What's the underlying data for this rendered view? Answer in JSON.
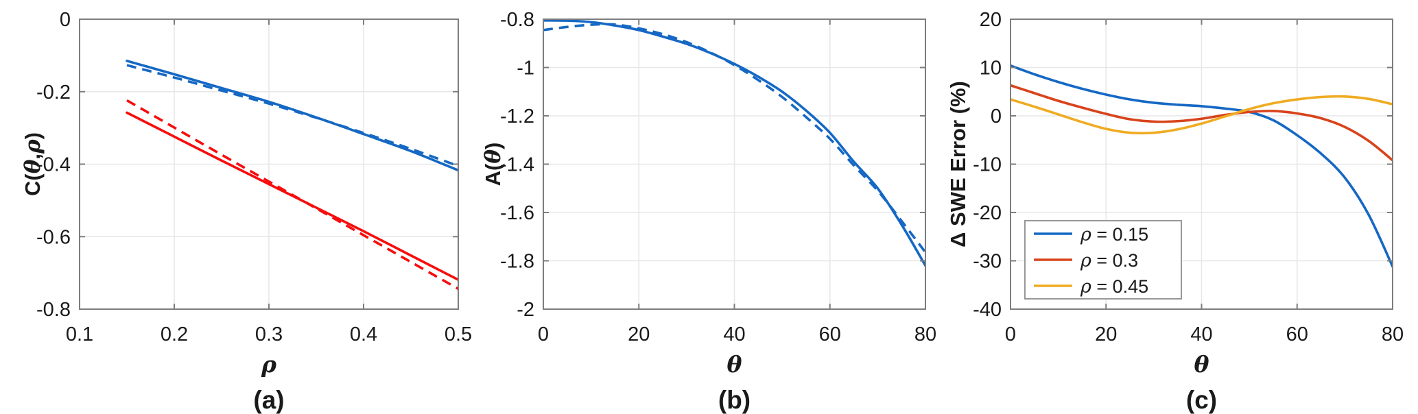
{
  "figure": {
    "background": "#ffffff",
    "grid_color": "#e7e7e7",
    "axis_box_color": "#7d7d7d",
    "text_color": "#1a1a1a"
  },
  "chart_data": [
    {
      "type": "line",
      "caption": "(a)",
      "xlabel": "ρ",
      "ylabel": "C(θ,ρ)",
      "xlim": [
        0.1,
        0.5
      ],
      "ylim": [
        -0.8,
        0
      ],
      "xticks": [
        {
          "v": 0.1,
          "t": "0.1"
        },
        {
          "v": 0.2,
          "t": "0.2"
        },
        {
          "v": 0.3,
          "t": "0.3"
        },
        {
          "v": 0.4,
          "t": "0.4"
        },
        {
          "v": 0.5,
          "t": "0.5"
        }
      ],
      "yticks": [
        {
          "v": 0,
          "t": "0"
        },
        {
          "v": -0.2,
          "t": "-0.2"
        },
        {
          "v": -0.4,
          "t": "-0.4"
        },
        {
          "v": -0.6,
          "t": "-0.6"
        },
        {
          "v": -0.8,
          "t": "-0.8"
        }
      ],
      "grid": true,
      "legend": null,
      "series": [
        {
          "name": "blue-solid",
          "color": "#1568C4",
          "style": "solid",
          "x": [
            0.15,
            0.2,
            0.25,
            0.3,
            0.35,
            0.4,
            0.45,
            0.5
          ],
          "y": [
            -0.115,
            -0.152,
            -0.19,
            -0.228,
            -0.271,
            -0.317,
            -0.364,
            -0.417
          ]
        },
        {
          "name": "blue-dashed",
          "color": "#1568C4",
          "style": "dashed",
          "x": [
            0.15,
            0.2,
            0.25,
            0.3,
            0.35,
            0.4,
            0.45,
            0.5
          ],
          "y": [
            -0.127,
            -0.161,
            -0.197,
            -0.233,
            -0.272,
            -0.314,
            -0.358,
            -0.405
          ]
        },
        {
          "name": "red-solid",
          "color": "#F70D0D",
          "style": "solid",
          "x": [
            0.15,
            0.2,
            0.25,
            0.3,
            0.35,
            0.4,
            0.45,
            0.5
          ],
          "y": [
            -0.258,
            -0.324,
            -0.39,
            -0.455,
            -0.52,
            -0.585,
            -0.652,
            -0.719
          ]
        },
        {
          "name": "red-dashed",
          "color": "#F70D0D",
          "style": "dashed",
          "x": [
            0.15,
            0.2,
            0.25,
            0.3,
            0.35,
            0.4,
            0.45,
            0.5
          ],
          "y": [
            -0.224,
            -0.299,
            -0.374,
            -0.448,
            -0.522,
            -0.596,
            -0.67,
            -0.744
          ]
        }
      ]
    },
    {
      "type": "line",
      "caption": "(b)",
      "xlabel": "θ",
      "ylabel": "A(θ)",
      "xlim": [
        0,
        80
      ],
      "ylim": [
        -2,
        -0.8
      ],
      "xticks": [
        {
          "v": 0,
          "t": "0"
        },
        {
          "v": 20,
          "t": "20"
        },
        {
          "v": 40,
          "t": "40"
        },
        {
          "v": 60,
          "t": "60"
        },
        {
          "v": 80,
          "t": "80"
        }
      ],
      "yticks": [
        {
          "v": -0.8,
          "t": "-0.8"
        },
        {
          "v": -1,
          "t": "-1"
        },
        {
          "v": -1.2,
          "t": "-1.2"
        },
        {
          "v": -1.4,
          "t": "-1.4"
        },
        {
          "v": -1.6,
          "t": "-1.6"
        },
        {
          "v": -1.8,
          "t": "-1.8"
        },
        {
          "v": -2,
          "t": "-2"
        }
      ],
      "grid": true,
      "legend": null,
      "series": [
        {
          "name": "blue-solid",
          "color": "#1568C4",
          "style": "solid",
          "x": [
            0,
            5,
            10,
            15,
            20,
            25,
            30,
            35,
            40,
            45,
            50,
            55,
            60,
            65,
            70,
            75,
            80
          ],
          "y": [
            -0.805,
            -0.806,
            -0.812,
            -0.826,
            -0.845,
            -0.872,
            -0.902,
            -0.94,
            -0.985,
            -1.038,
            -1.1,
            -1.178,
            -1.27,
            -1.39,
            -1.5,
            -1.65,
            -1.82
          ]
        },
        {
          "name": "blue-dashed",
          "color": "#1568C4",
          "style": "dashed",
          "x": [
            0,
            5,
            10,
            15,
            20,
            25,
            30,
            35,
            40,
            45,
            50,
            55,
            60,
            65,
            70,
            75,
            80
          ],
          "y": [
            -0.845,
            -0.832,
            -0.823,
            -0.822,
            -0.838,
            -0.862,
            -0.895,
            -0.938,
            -0.99,
            -1.052,
            -1.122,
            -1.205,
            -1.295,
            -1.405,
            -1.51,
            -1.635,
            -1.765
          ]
        }
      ]
    },
    {
      "type": "line",
      "caption": "(c)",
      "xlabel": "θ",
      "ylabel": "Δ SWE Error (%)",
      "xlim": [
        0,
        80
      ],
      "ylim": [
        -40,
        20
      ],
      "xticks": [
        {
          "v": 0,
          "t": "0"
        },
        {
          "v": 20,
          "t": "20"
        },
        {
          "v": 40,
          "t": "40"
        },
        {
          "v": 60,
          "t": "60"
        },
        {
          "v": 80,
          "t": "80"
        }
      ],
      "yticks": [
        {
          "v": 20,
          "t": "20"
        },
        {
          "v": 10,
          "t": "10"
        },
        {
          "v": 0,
          "t": "0"
        },
        {
          "v": -10,
          "t": "-10"
        },
        {
          "v": -20,
          "t": "-20"
        },
        {
          "v": -30,
          "t": "-30"
        },
        {
          "v": -40,
          "t": "-40"
        }
      ],
      "grid": true,
      "legend": {
        "position": "bottom-left",
        "entries": [
          {
            "label": "ρ = 0.15",
            "color": "#1568C4"
          },
          {
            "label": "ρ = 0.3",
            "color": "#D8431C"
          },
          {
            "label": "ρ = 0.45",
            "color": "#EFAB22"
          }
        ]
      },
      "series": [
        {
          "name": "rho-0.15",
          "legend_label": "ρ = 0.15",
          "color": "#1568C4",
          "style": "solid",
          "x": [
            0,
            5,
            10,
            15,
            20,
            25,
            30,
            35,
            40,
            45,
            50,
            55,
            60,
            65,
            70,
            75,
            80
          ],
          "y": [
            10.4,
            8.6,
            7.0,
            5.6,
            4.4,
            3.4,
            2.7,
            2.3,
            2.0,
            1.5,
            0.8,
            -0.9,
            -4.0,
            -7.8,
            -12.8,
            -20.5,
            -31.2
          ]
        },
        {
          "name": "rho-0.3",
          "legend_label": "ρ = 0.3",
          "color": "#D8431C",
          "style": "solid",
          "x": [
            0,
            5,
            10,
            15,
            20,
            25,
            30,
            35,
            40,
            45,
            50,
            55,
            60,
            65,
            70,
            75,
            80
          ],
          "y": [
            6.3,
            4.7,
            3.1,
            1.7,
            0.4,
            -0.7,
            -1.2,
            -1.1,
            -0.6,
            0.2,
            0.8,
            1.0,
            0.5,
            -0.5,
            -2.3,
            -5.2,
            -9.2
          ]
        },
        {
          "name": "rho-0.45",
          "legend_label": "ρ = 0.45",
          "color": "#EFAB22",
          "style": "solid",
          "x": [
            0,
            5,
            10,
            15,
            20,
            25,
            30,
            35,
            40,
            45,
            50,
            55,
            60,
            65,
            70,
            75,
            80
          ],
          "y": [
            3.4,
            1.9,
            0.3,
            -1.3,
            -2.7,
            -3.5,
            -3.5,
            -2.8,
            -1.6,
            -0.1,
            1.4,
            2.6,
            3.4,
            3.9,
            4.0,
            3.5,
            2.4
          ]
        }
      ]
    }
  ]
}
